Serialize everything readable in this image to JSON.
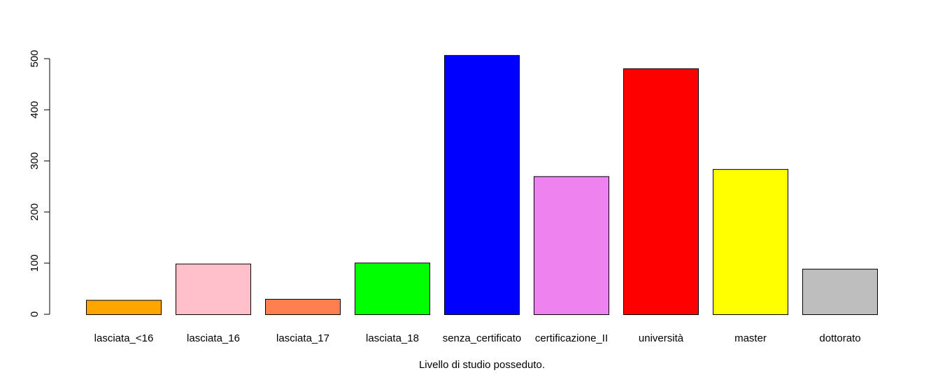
{
  "chart_data": {
    "type": "bar",
    "title": "",
    "xlabel": "Livello di studio posseduto.",
    "ylabel": "",
    "ylim": [
      0,
      500
    ],
    "yticks": [
      0,
      100,
      200,
      300,
      400,
      500
    ],
    "grid": false,
    "categories": [
      "lasciata_<16",
      "lasciata_16",
      "lasciata_17",
      "lasciata_18",
      "senza_certificato",
      "certificazione_II",
      "università",
      "master",
      "dottorato"
    ],
    "values": [
      28,
      99,
      30,
      101,
      507,
      270,
      481,
      284,
      89
    ],
    "colors": [
      "#FFA500",
      "#FFC0CB",
      "#FF7F50",
      "#00FF00",
      "#0000FF",
      "#EE82EE",
      "#FF0000",
      "#FFFF00",
      "#BEBEBE"
    ]
  }
}
